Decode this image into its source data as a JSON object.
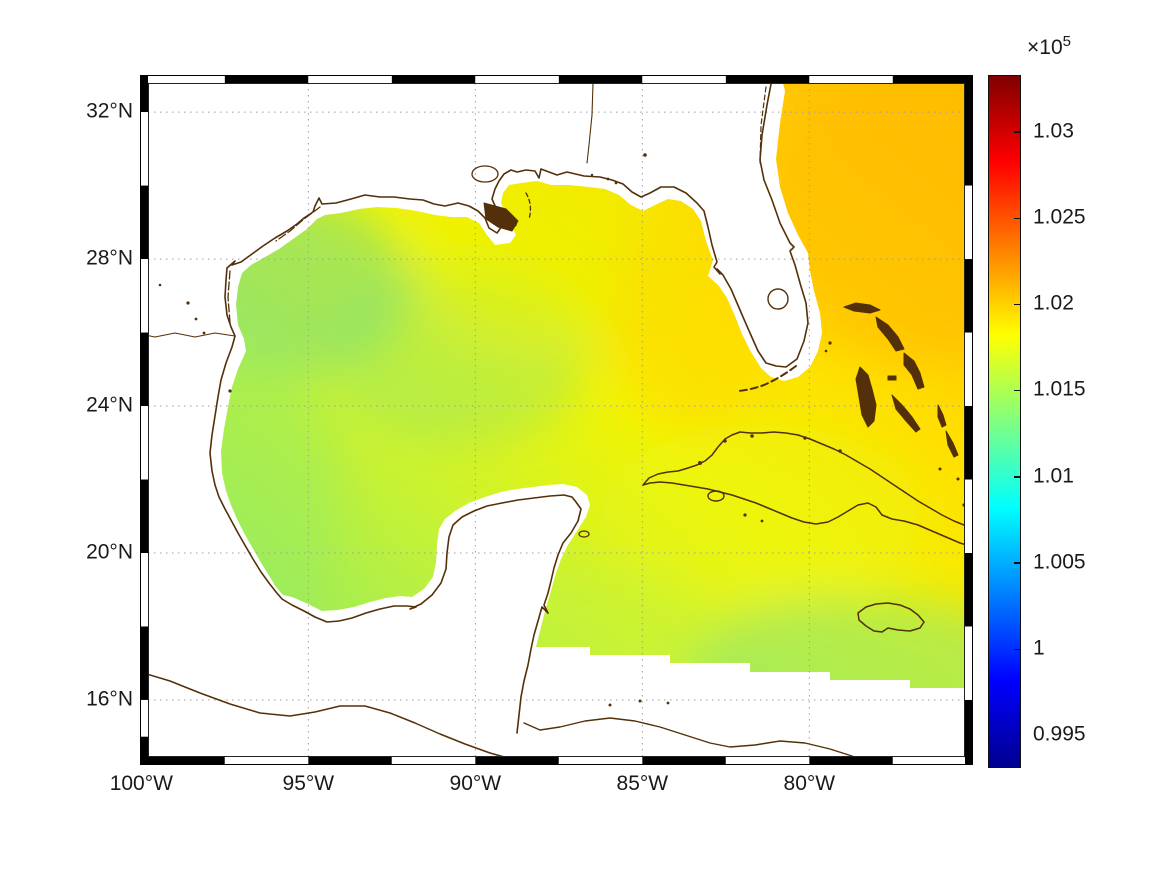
{
  "figure": {
    "background_color": "#ffffff",
    "frame_style": "alternating black/white fancy map frame",
    "grid_style": "dotted gray graticule"
  },
  "chart_data": {
    "type": "heatmap",
    "subtype": "geographic filled-contour field (surface pressure) over Gulf of Mexico",
    "title": "",
    "region": "Gulf of Mexico, western North Atlantic, NW Caribbean",
    "x_axis": {
      "label": "",
      "tick_labels": [
        "100°W",
        "95°W",
        "90°W",
        "85°W",
        "80°W"
      ],
      "tick_values_deg_west": [
        100,
        95,
        90,
        85,
        80
      ],
      "range_deg_west": [
        100.04,
        75.1
      ]
    },
    "y_axis": {
      "label": "",
      "tick_labels": [
        "32°N",
        "28°N",
        "24°N",
        "20°N",
        "16°N"
      ],
      "tick_values_deg_north": [
        32,
        28,
        24,
        20,
        16
      ],
      "range_deg_north": [
        14.23,
        33.01
      ]
    },
    "colorbar": {
      "multiplier_base": "×10",
      "multiplier_exponent": "5",
      "tick_labels": [
        "1.03",
        "1.025",
        "1.02",
        "1.015",
        "1.01",
        "1.005",
        "1",
        "0.995"
      ],
      "tick_values": [
        1.03,
        1.025,
        1.02,
        1.015,
        1.01,
        1.005,
        1.0,
        0.995
      ],
      "range": [
        0.9931,
        1.0333
      ],
      "colormap": "jet",
      "colormap_stops": [
        {
          "pos": 0.0,
          "color": "#00008f"
        },
        {
          "pos": 0.125,
          "color": "#0000ff"
        },
        {
          "pos": 0.375,
          "color": "#00ffff"
        },
        {
          "pos": 0.5,
          "color": "#80ff80"
        },
        {
          "pos": 0.625,
          "color": "#ffff00"
        },
        {
          "pos": 0.875,
          "color": "#ff0000"
        },
        {
          "pos": 1.0,
          "color": "#800000"
        }
      ]
    },
    "field_samples_x1e5": [
      {
        "lon_deg_west": 95.0,
        "lat_deg_north": 27.0,
        "value": 1.0148
      },
      {
        "lon_deg_west": 93.5,
        "lat_deg_north": 26.0,
        "value": 1.014
      },
      {
        "lon_deg_west": 90.0,
        "lat_deg_north": 24.0,
        "value": 1.0158
      },
      {
        "lon_deg_west": 89.0,
        "lat_deg_north": 29.0,
        "value": 1.0165
      },
      {
        "lon_deg_west": 85.0,
        "lat_deg_north": 28.0,
        "value": 1.018
      },
      {
        "lon_deg_west": 81.0,
        "lat_deg_north": 24.0,
        "value": 1.0195
      },
      {
        "lon_deg_west": 79.0,
        "lat_deg_north": 27.0,
        "value": 1.021
      },
      {
        "lon_deg_west": 76.0,
        "lat_deg_north": 32.0,
        "value": 1.022
      },
      {
        "lon_deg_west": 85.0,
        "lat_deg_north": 20.0,
        "value": 1.015
      },
      {
        "lon_deg_west": 79.0,
        "lat_deg_north": 20.0,
        "value": 1.014
      },
      {
        "lon_deg_west": 77.0,
        "lat_deg_north": 17.8,
        "value": 1.0135
      }
    ],
    "colors": {
      "coastline": "#53300a",
      "land_no_data": "#ffffff",
      "gridline": "#9e9e9e",
      "tick_text": "#1a1a1a"
    },
    "legend_position": "colorbar right",
    "grid": true
  }
}
